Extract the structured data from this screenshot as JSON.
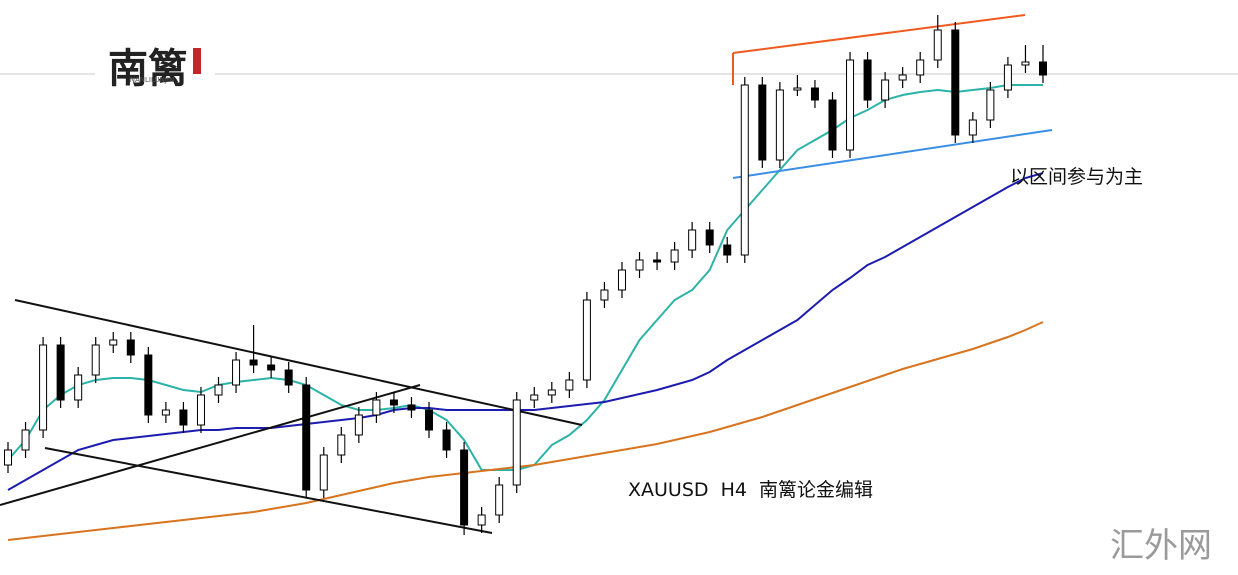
{
  "branding": {
    "logo": "南篱",
    "logo_subtitle": "NANLILUNJIN",
    "watermark": "汇外网"
  },
  "chart_data": {
    "type": "candlestick",
    "caption": "XAUUSD  H4  南篱论金编辑",
    "annotation": "以区间参与为主",
    "ylim": [
      0,
      575
    ],
    "up_color": "#ffffff",
    "down_color": "#000000",
    "candles": [
      [
        110,
        133,
        102,
        125
      ],
      [
        125,
        153,
        117,
        145
      ],
      [
        145,
        238,
        137,
        230
      ],
      [
        230,
        238,
        167,
        175
      ],
      [
        175,
        208,
        167,
        200
      ],
      [
        200,
        238,
        192,
        230
      ],
      [
        230,
        243,
        222,
        235
      ],
      [
        235,
        243,
        212,
        220
      ],
      [
        220,
        228,
        152,
        160
      ],
      [
        160,
        173,
        152,
        165
      ],
      [
        165,
        173,
        142,
        150
      ],
      [
        150,
        188,
        142,
        180
      ],
      [
        180,
        198,
        172,
        190
      ],
      [
        190,
        223,
        182,
        215
      ],
      [
        215,
        250,
        202,
        210
      ],
      [
        210,
        218,
        197,
        205
      ],
      [
        205,
        213,
        182,
        190
      ],
      [
        190,
        198,
        77,
        85
      ],
      [
        85,
        128,
        77,
        120
      ],
      [
        120,
        148,
        112,
        140
      ],
      [
        140,
        168,
        132,
        160
      ],
      [
        160,
        183,
        152,
        175
      ],
      [
        175,
        183,
        162,
        170
      ],
      [
        170,
        178,
        157,
        165
      ],
      [
        165,
        173,
        137,
        145
      ],
      [
        145,
        153,
        117,
        125
      ],
      [
        125,
        133,
        40,
        50
      ],
      [
        50,
        68,
        42,
        60
      ],
      [
        60,
        98,
        52,
        90
      ],
      [
        90,
        183,
        82,
        175
      ],
      [
        175,
        188,
        167,
        180
      ],
      [
        180,
        193,
        172,
        185
      ],
      [
        185,
        203,
        177,
        195
      ],
      [
        195,
        283,
        187,
        275
      ],
      [
        275,
        293,
        267,
        285
      ],
      [
        285,
        313,
        277,
        305
      ],
      [
        305,
        323,
        297,
        315
      ],
      [
        315,
        323,
        305,
        313
      ],
      [
        313,
        333,
        305,
        325
      ],
      [
        325,
        353,
        317,
        345
      ],
      [
        345,
        353,
        322,
        330
      ],
      [
        330,
        338,
        312,
        320
      ],
      [
        320,
        498,
        312,
        490
      ],
      [
        490,
        498,
        407,
        415
      ],
      [
        415,
        493,
        407,
        485
      ],
      [
        485,
        500,
        479,
        487
      ],
      [
        487,
        495,
        467,
        475
      ],
      [
        475,
        483,
        417,
        425
      ],
      [
        425,
        523,
        417,
        515
      ],
      [
        515,
        523,
        467,
        475
      ],
      [
        475,
        503,
        467,
        495
      ],
      [
        495,
        508,
        487,
        500
      ],
      [
        500,
        523,
        492,
        515
      ],
      [
        515,
        560,
        507,
        545
      ],
      [
        545,
        553,
        432,
        440
      ],
      [
        440,
        463,
        432,
        455
      ],
      [
        455,
        493,
        447,
        485
      ],
      [
        485,
        518,
        477,
        510
      ],
      [
        510,
        530,
        502,
        513
      ],
      [
        513,
        530,
        492,
        500
      ]
    ],
    "moving_averages": [
      {
        "color": "#2bb3a8",
        "values": [
          115,
          135,
          165,
          180,
          190,
          195,
          197,
          197,
          195,
          190,
          185,
          183,
          190,
          193,
          195,
          197,
          195,
          190,
          180,
          170,
          165,
          165,
          167,
          170,
          165,
          155,
          135,
          105,
          105,
          105,
          110,
          130,
          140,
          155,
          175,
          205,
          235,
          255,
          275,
          285,
          305,
          345,
          365,
          385,
          405,
          425,
          435,
          445,
          457,
          465,
          475,
          480,
          483,
          485,
          483,
          485,
          487,
          490,
          490,
          490
        ]
      },
      {
        "color": "#1c1cb0",
        "values": [
          85,
          95,
          105,
          115,
          125,
          130,
          135,
          137,
          139,
          141,
          143,
          145,
          145,
          147,
          147,
          147,
          149,
          151,
          153,
          155,
          157,
          160,
          165,
          167,
          167,
          165,
          165,
          165,
          165,
          165,
          165,
          167,
          169,
          171,
          173,
          177,
          181,
          185,
          190,
          195,
          203,
          215,
          225,
          235,
          245,
          255,
          270,
          285,
          297,
          310,
          318,
          328,
          338,
          348,
          358,
          368,
          378,
          388,
          397,
          402
        ]
      },
      {
        "color": "#d9741e",
        "values": [
          35,
          37,
          39,
          41,
          43,
          45,
          47,
          49,
          51,
          53,
          55,
          57,
          59,
          61,
          63,
          66,
          69,
          72,
          76,
          80,
          84,
          88,
          92,
          95,
          98,
          100,
          102,
          104,
          106,
          108,
          110,
          113,
          116,
          119,
          122,
          125,
          128,
          131,
          135,
          139,
          143,
          148,
          153,
          158,
          164,
          170,
          176,
          182,
          188,
          194,
          200,
          206,
          211,
          216,
          221,
          226,
          232,
          238,
          245,
          253
        ]
      }
    ]
  }
}
